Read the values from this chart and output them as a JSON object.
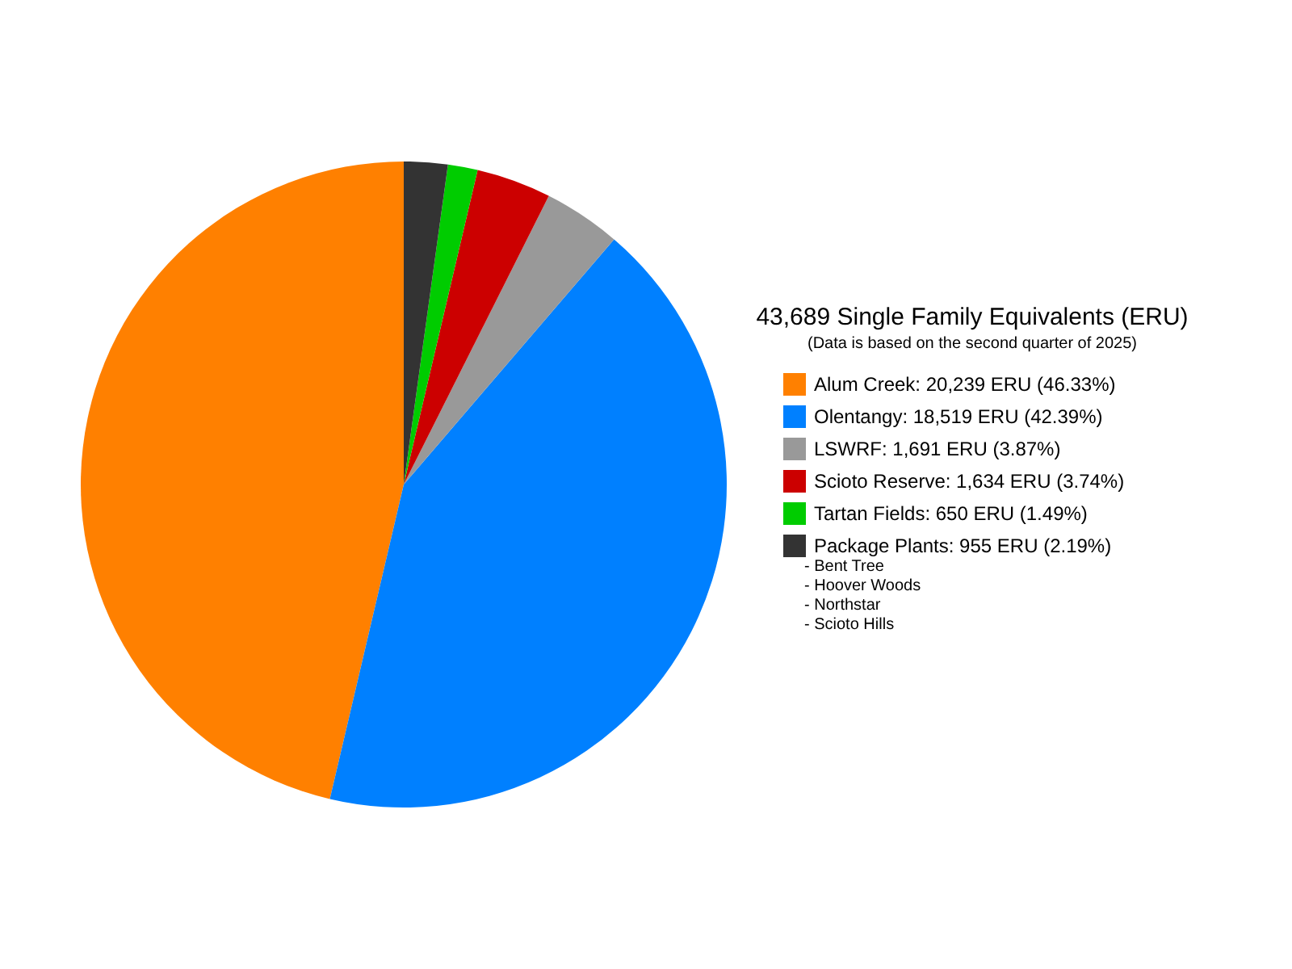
{
  "chart_data": {
    "type": "pie",
    "title": "43,689 Single Family Equivalents (ERU)",
    "subtitle": "(Data is based on the second quarter of 2025)",
    "categories": [
      "Alum Creek: 20,239 ERU (46.33%)",
      "Olentangy: 18,519 ERU (42.39%)",
      "LSWRF: 1,691 ERU (3.87%)",
      "Scioto Reserve: 1,634 ERU (3.74%)",
      "Tartan Fields: 650 ERU (1.49%)",
      "Package Plants: 955 ERU (2.19%)"
    ],
    "values": [
      20239,
      18519,
      1691,
      1634,
      650,
      955
    ],
    "colors": [
      "#ff8000",
      "#0080ff",
      "#999999",
      "#cc0000",
      "#00cc00",
      "#333333"
    ],
    "legend": "right",
    "annotations": [
      "- Bent Tree",
      "- Hoover Woods",
      "- Northstar",
      "- Scioto Hills"
    ]
  }
}
